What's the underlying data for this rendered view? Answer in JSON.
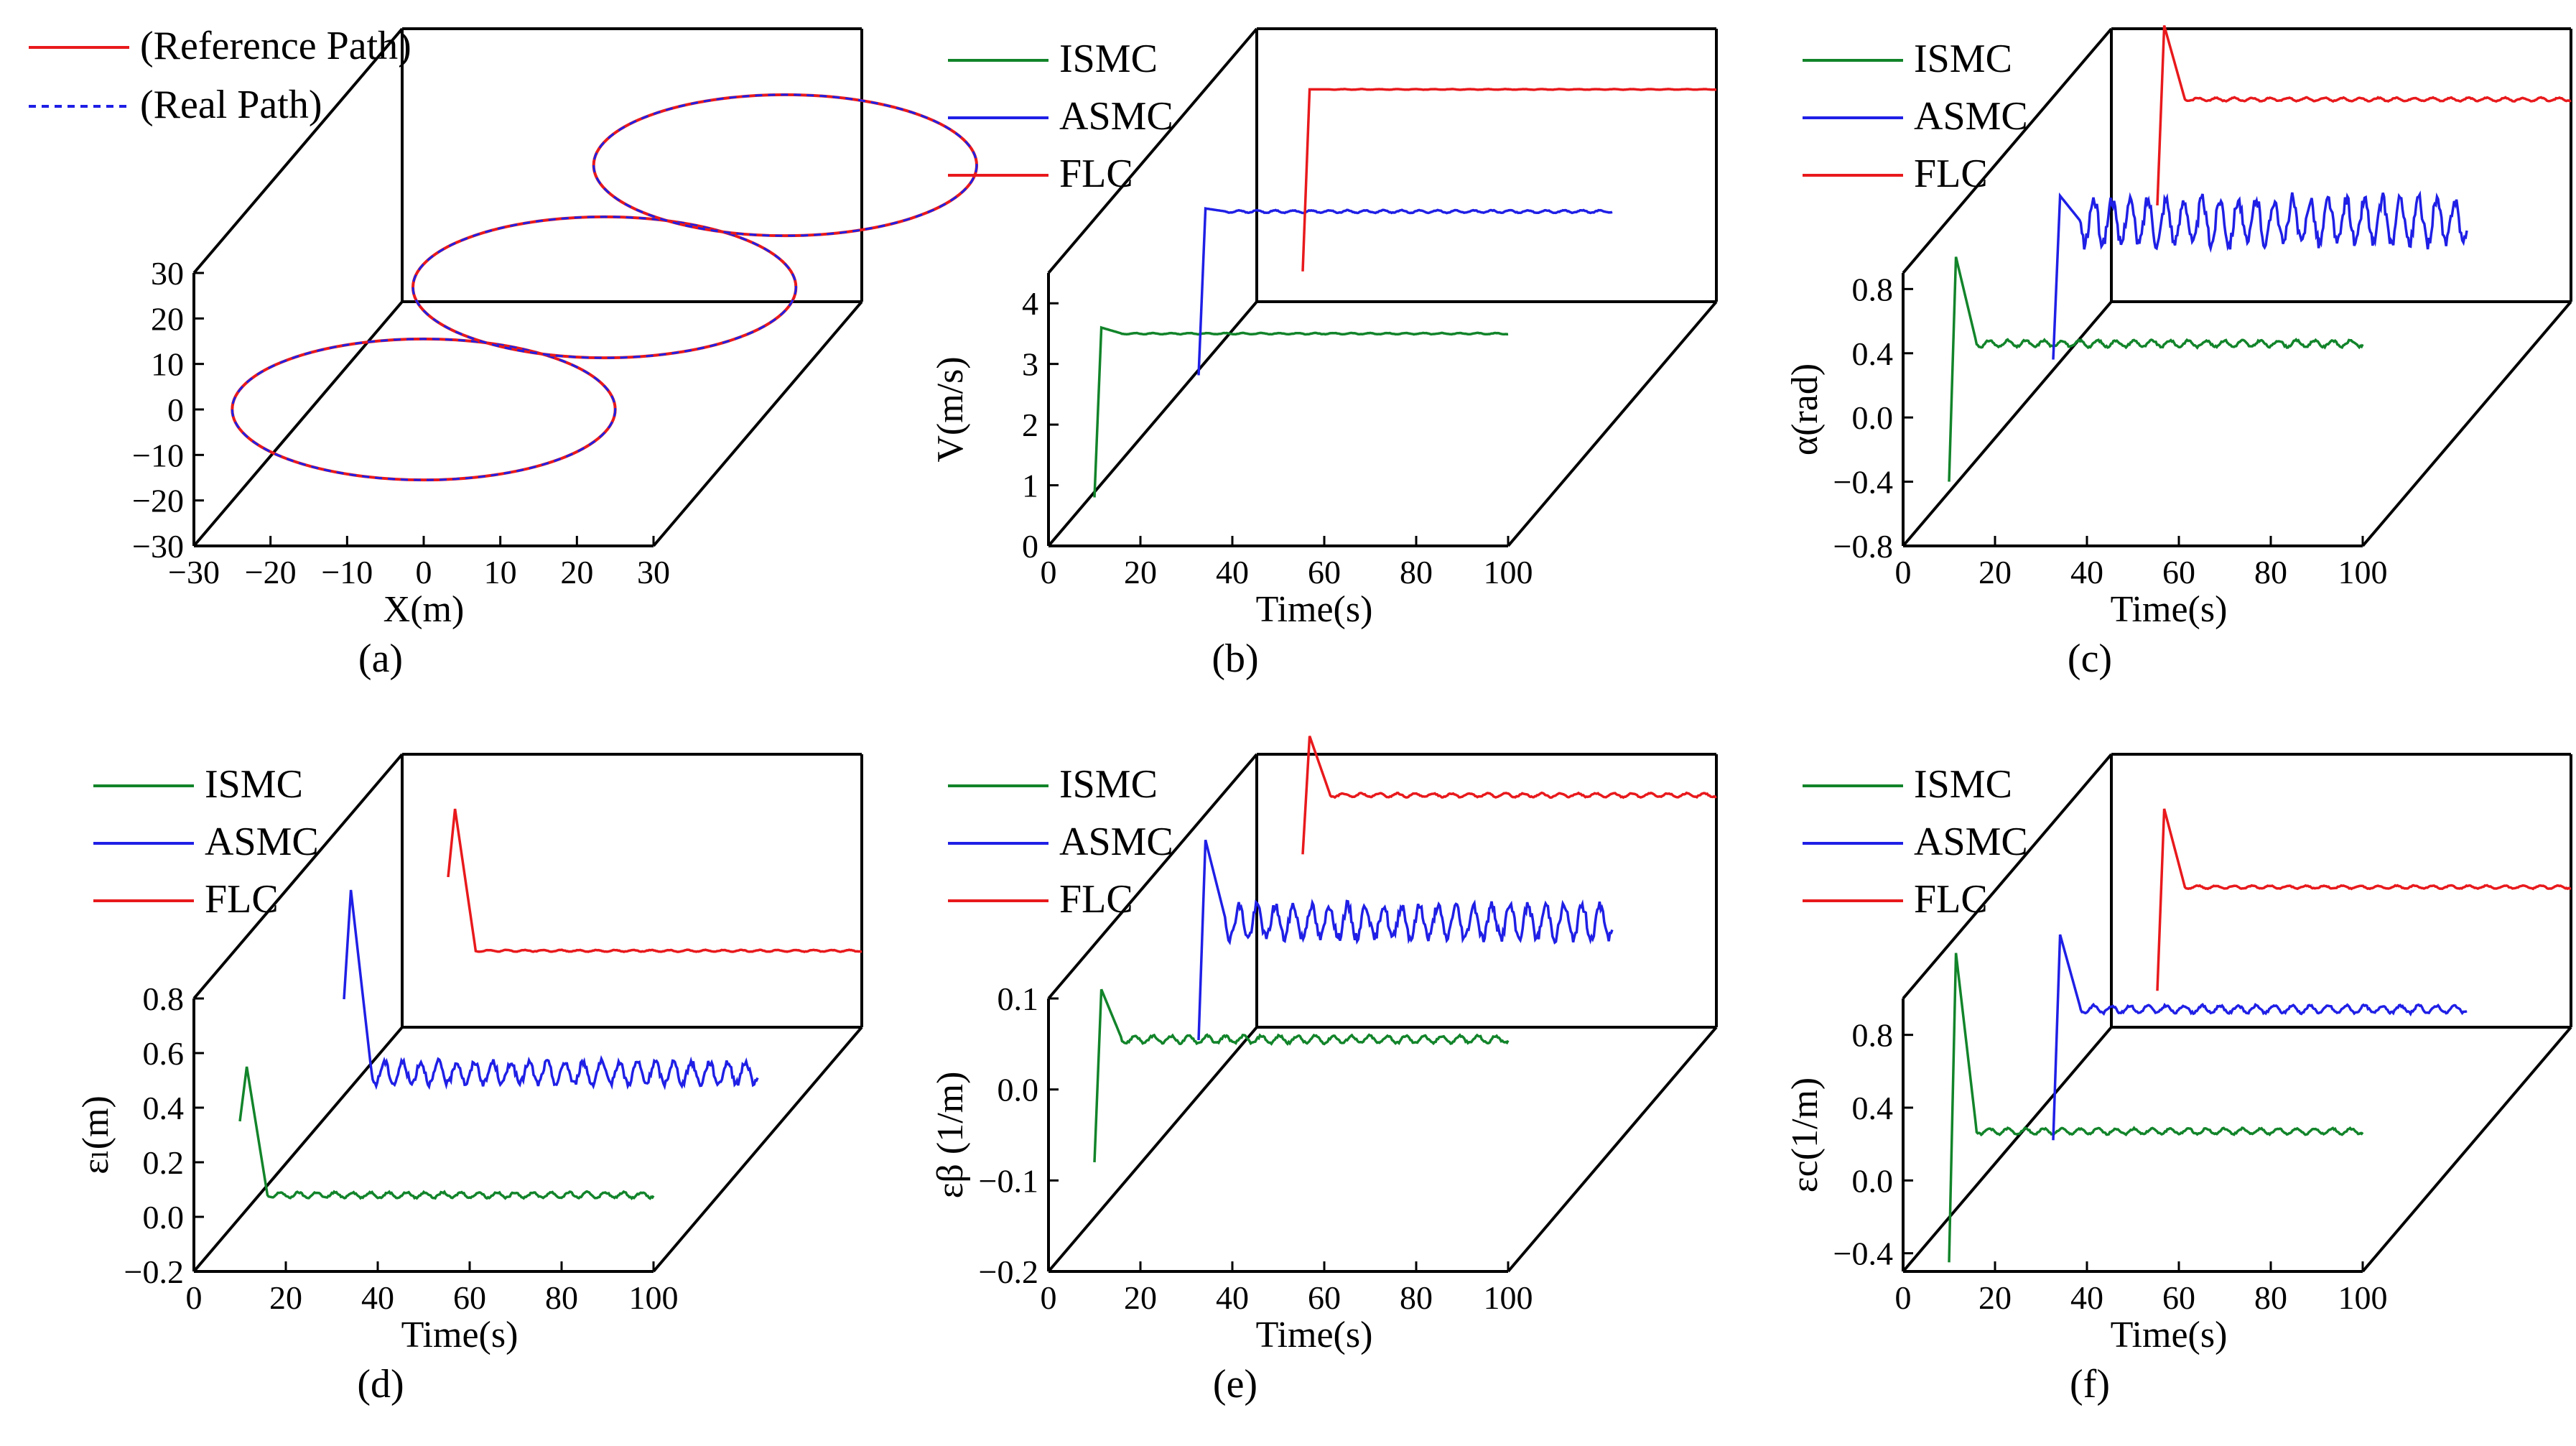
{
  "chart_data": [
    {
      "id": "a",
      "type": "line3d",
      "caption": "(a)",
      "xlabel": "X(m)",
      "ylabel": "",
      "zlabel": "",
      "xlim": [
        -30,
        30
      ],
      "zlim": [
        -30,
        30
      ],
      "xticks": [
        "−30",
        "−20",
        "−10",
        "0",
        "10",
        "20",
        "30"
      ],
      "zticks": [
        "−30",
        "−20",
        "−10",
        "0",
        "10",
        "20",
        "30"
      ],
      "legend": [
        "(Reference Path)",
        "(Real Path)"
      ],
      "series": [
        {
          "name": "Reference Path",
          "color": "#e8191c",
          "style": "solid"
        },
        {
          "name": "Real Path",
          "color": "#1f1fe6",
          "style": "dashed"
        }
      ],
      "circles": [
        {
          "center": [
            0,
            0
          ],
          "radius": 25,
          "depth": 0
        },
        {
          "center": [
            10,
            0
          ],
          "radius": 25,
          "depth": 0.5
        },
        {
          "center": [
            20,
            0
          ],
          "radius": 25,
          "depth": 1
        }
      ]
    },
    {
      "id": "b",
      "type": "line3d",
      "caption": "(b)",
      "xlabel": "Time(s)",
      "ylabel": "V(m/s)",
      "xlim": [
        0,
        100
      ],
      "ylim": [
        0,
        4.5
      ],
      "xticks": [
        "0",
        "20",
        "40",
        "60",
        "80",
        "100"
      ],
      "yticks": [
        "0",
        "1",
        "2",
        "3",
        "4"
      ],
      "legend": [
        "ISMC",
        "ASMC",
        "FLC"
      ],
      "series": [
        {
          "name": "ISMC",
          "color": "#12842a",
          "depth": 0,
          "start": 0.8,
          "steady": 3.5,
          "peak": 3.6,
          "noise": 0.01
        },
        {
          "name": "ASMC",
          "color": "#1f1fe6",
          "depth": 0.5,
          "start": 0.8,
          "steady": 3.5,
          "peak": 3.55,
          "noise": 0.02
        },
        {
          "name": "FLC",
          "color": "#e8191c",
          "depth": 1,
          "start": 0.5,
          "steady": 3.5,
          "peak": 3.5,
          "noise": 0.005
        }
      ]
    },
    {
      "id": "c",
      "type": "line3d",
      "caption": "(c)",
      "xlabel": "Time(s)",
      "ylabel": "α(rad)",
      "xlim": [
        0,
        100
      ],
      "ylim": [
        -0.8,
        0.9
      ],
      "xticks": [
        "0",
        "20",
        "40",
        "60",
        "80",
        "100"
      ],
      "yticks": [
        "−0.8",
        "−0.4",
        "0.0",
        "0.4",
        "0.8"
      ],
      "legend": [
        "ISMC",
        "ASMC",
        "FLC"
      ],
      "series": [
        {
          "name": "ISMC",
          "color": "#12842a",
          "depth": 0,
          "start": -0.4,
          "steady": 0.46,
          "peak": 1.0,
          "noise": 0.02
        },
        {
          "name": "ASMC",
          "color": "#1f1fe6",
          "depth": 0.5,
          "start": -0.4,
          "steady": 0.46,
          "peak": 0.62,
          "noise": 0.14
        },
        {
          "name": "FLC",
          "color": "#e8191c",
          "depth": 1,
          "start": -0.2,
          "steady": 0.46,
          "peak": 0.92,
          "noise": 0.01
        }
      ]
    },
    {
      "id": "d",
      "type": "line3d",
      "caption": "(d)",
      "xlabel": "Time(s)",
      "ylabel": "εₗ(m)",
      "xlim": [
        0,
        100
      ],
      "ylim": [
        -0.2,
        0.8
      ],
      "xticks": [
        "0",
        "20",
        "40",
        "60",
        "80",
        "100"
      ],
      "yticks": [
        "−0.2",
        "0.0",
        "0.2",
        "0.4",
        "0.6",
        "0.8"
      ],
      "legend": [
        "ISMC",
        "ASMC",
        "FLC"
      ],
      "series": [
        {
          "name": "ISMC",
          "color": "#12842a",
          "depth": 0,
          "start": 0.35,
          "steady": 0.08,
          "peak": 0.55,
          "noise": 0.01
        },
        {
          "name": "ASMC",
          "color": "#1f1fe6",
          "depth": 0.5,
          "start": 0.35,
          "steady": 0.08,
          "peak": 0.75,
          "noise": 0.04
        },
        {
          "name": "FLC",
          "color": "#e8191c",
          "depth": 1,
          "start": 0.35,
          "steady": 0.08,
          "peak": 0.6,
          "noise": 0.003
        }
      ]
    },
    {
      "id": "e",
      "type": "line3d",
      "caption": "(e)",
      "xlabel": "Time(s)",
      "ylabel": "εβ (1/m)",
      "xlim": [
        0,
        100
      ],
      "ylim": [
        -0.2,
        0.1
      ],
      "xticks": [
        "0",
        "20",
        "40",
        "60",
        "80",
        "100"
      ],
      "yticks": [
        "−0.2",
        "−0.1",
        "0.0",
        "0.1"
      ],
      "legend": [
        "ISMC",
        "ASMC",
        "FLC"
      ],
      "series": [
        {
          "name": "ISMC",
          "color": "#12842a",
          "depth": 0,
          "start": -0.08,
          "steady": 0.055,
          "peak": 0.11,
          "noise": 0.004
        },
        {
          "name": "ASMC",
          "color": "#1f1fe6",
          "depth": 0.5,
          "start": -0.08,
          "steady": 0.05,
          "peak": 0.14,
          "noise": 0.018
        },
        {
          "name": "FLC",
          "color": "#e8191c",
          "depth": 1,
          "start": -0.01,
          "steady": 0.055,
          "peak": 0.12,
          "noise": 0.002
        }
      ]
    },
    {
      "id": "f",
      "type": "line3d",
      "caption": "(f)",
      "xlabel": "Time(s)",
      "ylabel": "εc(1/m)",
      "xlim": [
        0,
        100
      ],
      "ylim": [
        -0.5,
        1.0
      ],
      "xticks": [
        "0",
        "20",
        "40",
        "60",
        "80",
        "100"
      ],
      "yticks": [
        "−0.4",
        "0.0",
        "0.4",
        "0.8"
      ],
      "legend": [
        "ISMC",
        "ASMC",
        "FLC"
      ],
      "series": [
        {
          "name": "ISMC",
          "color": "#12842a",
          "depth": 0,
          "start": -0.45,
          "steady": 0.27,
          "peak": 1.25,
          "noise": 0.015
        },
        {
          "name": "ASMC",
          "color": "#1f1fe6",
          "depth": 0.5,
          "start": -0.45,
          "steady": 0.27,
          "peak": 0.68,
          "noise": 0.02
        },
        {
          "name": "FLC",
          "color": "#e8191c",
          "depth": 1,
          "start": -0.3,
          "steady": 0.27,
          "peak": 0.7,
          "noise": 0.008
        }
      ]
    }
  ]
}
